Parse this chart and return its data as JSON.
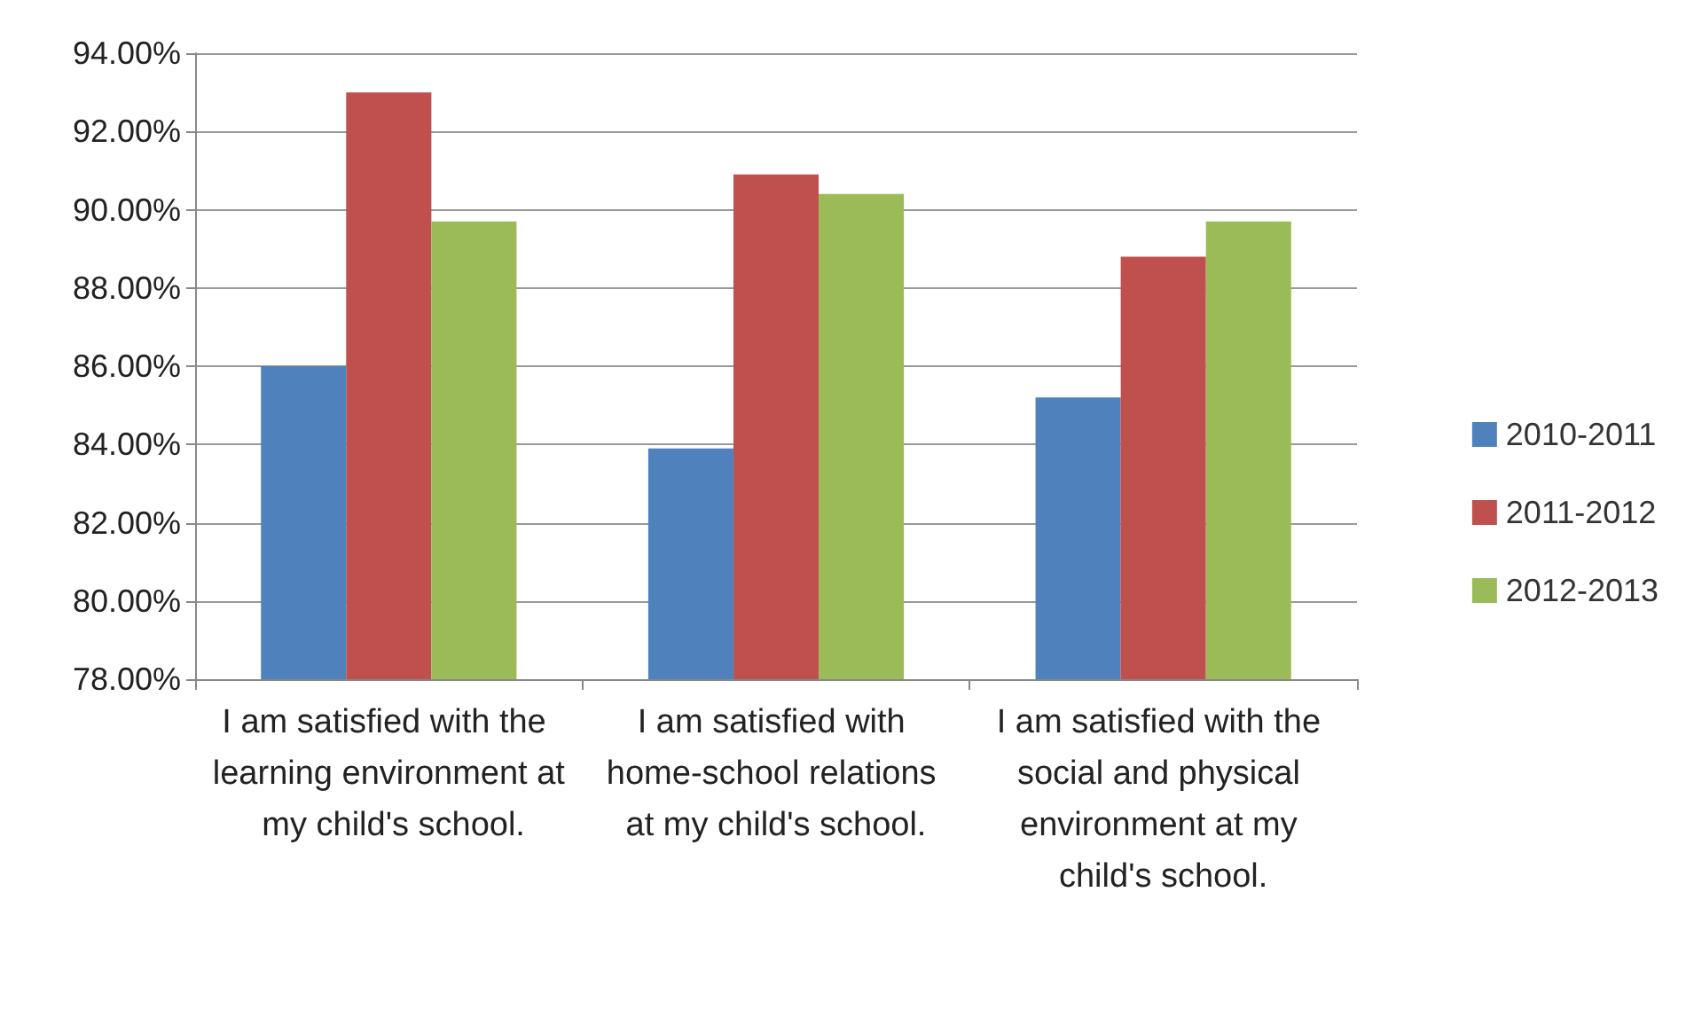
{
  "chart_data": {
    "type": "bar",
    "categories": [
      "I am satisfied with the learning environment at my child's school.",
      "I am satisfied with home-school relations at my child's school.",
      "I am satisfied with the social and physical environment at my child's school."
    ],
    "series": [
      {
        "name": "2010-2011",
        "color": "#4f81bd",
        "values": [
          86.0,
          83.9,
          85.2
        ]
      },
      {
        "name": "2011-2012",
        "color": "#c0504d",
        "values": [
          93.0,
          90.9,
          88.8
        ]
      },
      {
        "name": "2012-2013",
        "color": "#9bbb59",
        "values": [
          89.7,
          90.4,
          89.7
        ]
      }
    ],
    "ylim": [
      78,
      94
    ],
    "yticks": [
      {
        "value": 78,
        "label": "78.00%"
      },
      {
        "value": 80,
        "label": "80.00%"
      },
      {
        "value": 82,
        "label": "82.00%"
      },
      {
        "value": 84,
        "label": "84.00%"
      },
      {
        "value": 86,
        "label": "86.00%"
      },
      {
        "value": 88,
        "label": "88.00%"
      },
      {
        "value": 90,
        "label": "90.00%"
      },
      {
        "value": 92,
        "label": "92.00%"
      },
      {
        "value": 94,
        "label": "94.00%"
      }
    ],
    "grid": "y",
    "legend": "right"
  }
}
